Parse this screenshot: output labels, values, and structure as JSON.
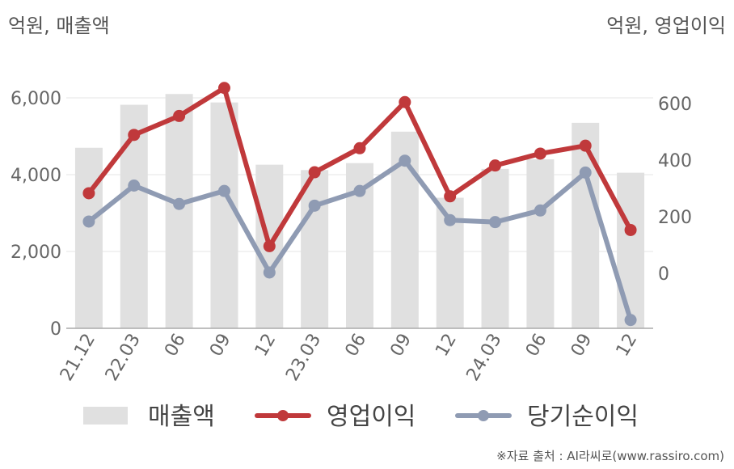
{
  "chart_data": {
    "type": "bar+line",
    "left_axis_label": "억원, 매출액",
    "right_axis_label": "억원, 영업이익",
    "categories": [
      "21.12",
      "22.03",
      "06",
      "09",
      "12",
      "23.03",
      "06",
      "09",
      "12",
      "24.03",
      "06",
      "09",
      "12"
    ],
    "left_axis": {
      "ylim": [
        0,
        7000
      ],
      "ticks": [
        0,
        2000,
        4000,
        6000
      ],
      "tick_labels": [
        "0",
        "2,000",
        "4,000",
        "6,000"
      ]
    },
    "right_axis": {
      "ylim": [
        -200,
        800
      ],
      "ticks": [
        0,
        200,
        400,
        600
      ],
      "tick_labels": [
        "0",
        "200",
        "400",
        "600"
      ]
    },
    "series": [
      {
        "name": "매출액",
        "type": "bar",
        "axis": "left",
        "color": "#e0e0e0",
        "values": [
          4700,
          5820,
          6100,
          5880,
          4260,
          4120,
          4300,
          5120,
          3400,
          4150,
          4400,
          5350,
          4050
        ]
      },
      {
        "name": "영업이익",
        "type": "line",
        "axis": "right",
        "color": "#c0393b",
        "values": [
          283,
          489,
          556,
          655,
          96,
          357,
          442,
          605,
          272,
          381,
          423,
          451,
          153
        ]
      },
      {
        "name": "당기순이익",
        "type": "line",
        "axis": "right",
        "color": "#8f9bb3",
        "values": [
          183,
          310,
          245,
          291,
          3,
          239,
          291,
          398,
          188,
          181,
          222,
          356,
          -165
        ]
      }
    ],
    "grid": true,
    "legend_position": "bottom"
  },
  "source_note": "※자료 출처 : AI라씨로(www.rassiro.com)"
}
